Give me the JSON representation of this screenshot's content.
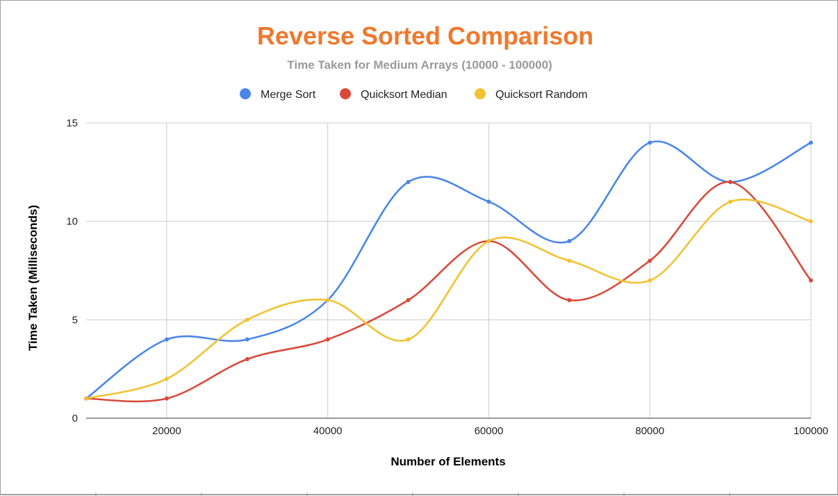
{
  "chart_data": {
    "type": "line",
    "title": "Reverse Sorted Comparison",
    "subtitle": "Time Taken for Medium Arrays (10000 - 100000)",
    "xlabel": "Number of Elements",
    "ylabel": "Time Taken (Milliseconds)",
    "x": [
      10000,
      20000,
      30000,
      40000,
      50000,
      60000,
      70000,
      80000,
      90000,
      100000
    ],
    "xlim": [
      10000,
      100000
    ],
    "ylim": [
      0,
      15
    ],
    "x_ticks": [
      "20000",
      "40000",
      "60000",
      "80000",
      "100000"
    ],
    "y_ticks": [
      "0",
      "5",
      "10",
      "15"
    ],
    "grid": true,
    "smooth": true,
    "legend_position": "top",
    "series": [
      {
        "name": "Merge Sort",
        "color": "#4a86e8",
        "values": [
          1,
          4,
          4,
          6,
          12,
          11,
          9,
          14,
          12,
          14
        ]
      },
      {
        "name": "Quicksort Median",
        "color": "#d9493a",
        "values": [
          1,
          1,
          3,
          4,
          6,
          9,
          6,
          8,
          12,
          7
        ]
      },
      {
        "name": "Quicksort Random",
        "color": "#f1c232",
        "values": [
          1,
          2,
          5,
          6,
          4,
          9,
          8,
          7,
          11,
          10
        ]
      }
    ]
  }
}
